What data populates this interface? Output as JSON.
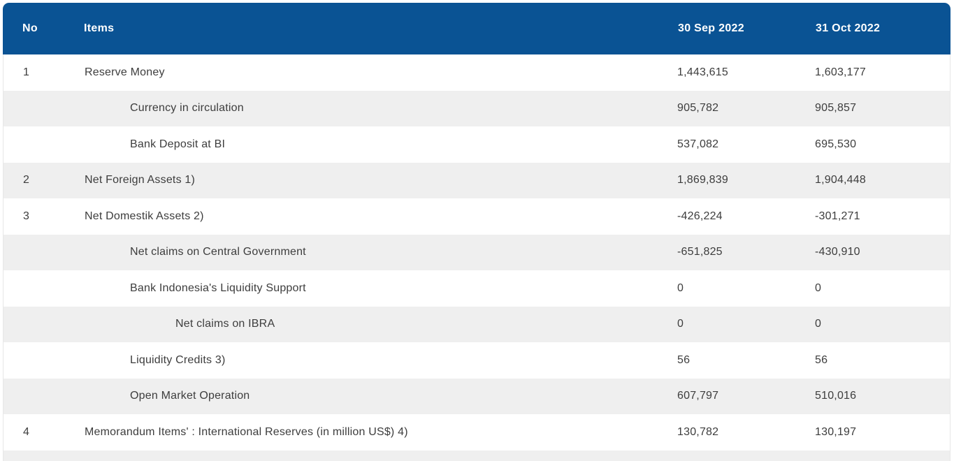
{
  "chart_data": {
    "type": "table",
    "columns": [
      {
        "id": "no",
        "label": "No"
      },
      {
        "id": "item",
        "label": "Items"
      },
      {
        "id": "sep2022",
        "label": "30 Sep 2022"
      },
      {
        "id": "oct2022",
        "label": "31 Oct 2022"
      }
    ],
    "rows": [
      {
        "no": "1",
        "item": "Reserve Money",
        "indent": 0,
        "sep2022": "1,443,615",
        "oct2022": "1,603,177"
      },
      {
        "no": "",
        "item": "Currency in circulation",
        "indent": 1,
        "sep2022": "905,782",
        "oct2022": "905,857"
      },
      {
        "no": "",
        "item": "Bank Deposit at BI",
        "indent": 1,
        "sep2022": "537,082",
        "oct2022": "695,530"
      },
      {
        "no": "2",
        "item": "Net Foreign Assets 1)",
        "indent": 0,
        "sep2022": "1,869,839",
        "oct2022": "1,904,448"
      },
      {
        "no": "3",
        "item": "Net Domestik Assets 2)",
        "indent": 0,
        "sep2022": "-426,224",
        "oct2022": "-301,271"
      },
      {
        "no": "",
        "item": "Net claims on Central Government",
        "indent": 1,
        "sep2022": "-651,825",
        "oct2022": "-430,910"
      },
      {
        "no": "",
        "item": "Bank Indonesia's Liquidity Support",
        "indent": 1,
        "sep2022": "0",
        "oct2022": "0"
      },
      {
        "no": "",
        "item": "Net claims on IBRA",
        "indent": 2,
        "sep2022": "0",
        "oct2022": "0"
      },
      {
        "no": "",
        "item": "Liquidity Credits 3)",
        "indent": 1,
        "sep2022": "56",
        "oct2022": "56"
      },
      {
        "no": "",
        "item": "Open Market Operation",
        "indent": 1,
        "sep2022": "607,797",
        "oct2022": "510,016"
      },
      {
        "no": "4",
        "item": "Memorandum Items' : International Reserves (in million US$) 4)",
        "indent": 0,
        "sep2022": "130,782",
        "oct2022": "130,197"
      }
    ],
    "layout": {
      "striped": true,
      "first_row_background": "white",
      "partial_next_row_visible": true
    },
    "colors": {
      "header_background": "#0a5394",
      "header_text": "#ffffff",
      "row_alt_background": "#efefef",
      "body_text": "#3d3d3d"
    }
  }
}
